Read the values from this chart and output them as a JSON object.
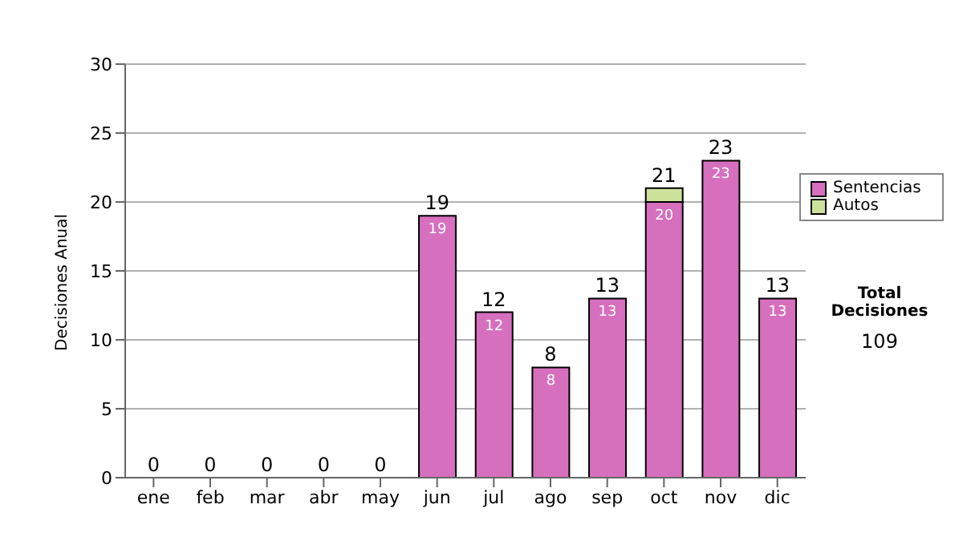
{
  "chart_data": {
    "type": "bar",
    "ylabel": "Decisiones Anual",
    "categories": [
      "ene",
      "feb",
      "mar",
      "abr",
      "may",
      "jun",
      "jul",
      "ago",
      "sep",
      "oct",
      "nov",
      "dic"
    ],
    "series": [
      {
        "name": "Sentencias",
        "color": "#d66fbe",
        "values": [
          0,
          0,
          0,
          0,
          0,
          19,
          12,
          8,
          13,
          20,
          23,
          13
        ],
        "value_labels": [
          null,
          null,
          null,
          null,
          null,
          "19",
          "12",
          "8",
          "13",
          "20",
          "23",
          "13"
        ]
      },
      {
        "name": "Autos",
        "color": "#cce29a",
        "values": [
          0,
          0,
          0,
          0,
          0,
          0,
          0,
          0,
          0,
          1,
          0,
          0
        ]
      }
    ],
    "stacked": true,
    "totals": [
      "0",
      "0",
      "0",
      "0",
      "0",
      "19",
      "12",
      "8",
      "13",
      "21",
      "23",
      "13"
    ],
    "ylim": [
      0,
      30
    ],
    "yticks": [
      0,
      5,
      10,
      15,
      20,
      25,
      30
    ],
    "grid": "y",
    "legend": "right",
    "annotations": [
      "Total Decisiones",
      "109"
    ]
  }
}
